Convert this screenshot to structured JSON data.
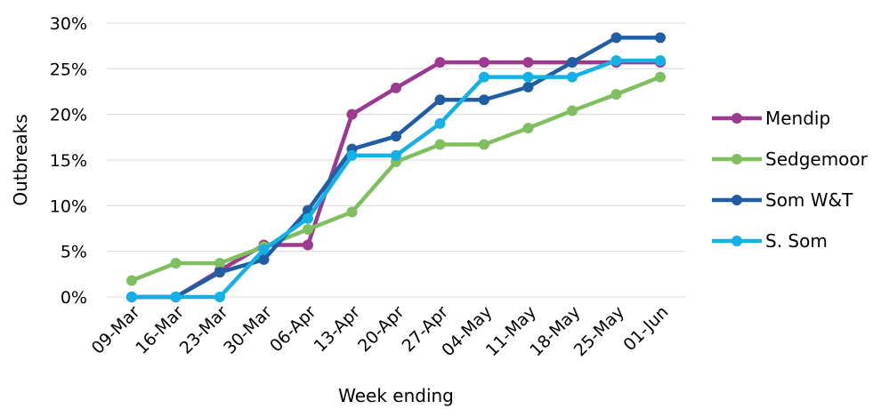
{
  "chart_data": {
    "type": "line",
    "title": "",
    "xlabel": "Week ending",
    "ylabel": "Outbreaks",
    "categories": [
      "09-Mar",
      "16-Mar",
      "23-Mar",
      "30-Mar",
      "06-Apr",
      "13-Apr",
      "20-Apr",
      "27-Apr",
      "04-May",
      "11-May",
      "18-May",
      "25-May",
      "01-Jun"
    ],
    "ylim": [
      0,
      30
    ],
    "yticks": [
      0,
      5,
      10,
      15,
      20,
      25,
      30
    ],
    "ytick_labels": [
      "0%",
      "5%",
      "10%",
      "15%",
      "20%",
      "25%",
      "30%"
    ],
    "grid": true,
    "legend_position": "right",
    "series": [
      {
        "name": "Mendip",
        "color": "#9b3a8f",
        "values": [
          0,
          0,
          2.9,
          5.7,
          5.7,
          20.0,
          22.9,
          25.7,
          25.7,
          25.7,
          25.7,
          25.7,
          25.7
        ]
      },
      {
        "name": "Sedgemoor",
        "color": "#7fbf5f",
        "values": [
          1.8,
          3.7,
          3.7,
          5.5,
          7.4,
          9.3,
          14.8,
          16.7,
          16.7,
          18.5,
          20.4,
          22.2,
          24.1
        ]
      },
      {
        "name": "Som W&T",
        "color": "#1f5ea3",
        "values": [
          0,
          0,
          2.7,
          4.1,
          9.5,
          16.2,
          17.6,
          21.6,
          21.6,
          23.0,
          25.7,
          28.4,
          28.4
        ]
      },
      {
        "name": "S. Som",
        "color": "#14b0e6",
        "values": [
          0,
          0,
          0,
          5.2,
          8.6,
          15.5,
          15.5,
          19.0,
          24.1,
          24.1,
          24.1,
          25.9,
          25.9
        ]
      }
    ]
  }
}
